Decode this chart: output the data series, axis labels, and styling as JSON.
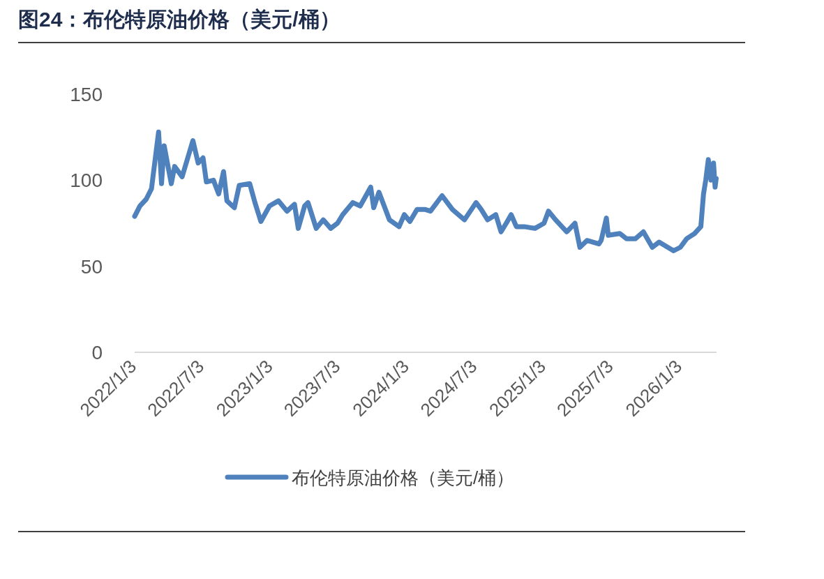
{
  "chart_data": {
    "type": "line",
    "title": "图24：布伦特原油价格（美元/桶）",
    "legend": "bottom",
    "grid": false,
    "line_style": "solid",
    "xlim": [
      "2022-01-03",
      "2026-04-10"
    ],
    "xticks": [
      {
        "value": "2022-01-03",
        "label": "2022/1/3"
      },
      {
        "value": "2022-07-03",
        "label": "2022/7/3"
      },
      {
        "value": "2023-01-03",
        "label": "2023/1/3"
      },
      {
        "value": "2023-07-03",
        "label": "2023/7/3"
      },
      {
        "value": "2024-01-03",
        "label": "2024/1/3"
      },
      {
        "value": "2024-07-03",
        "label": "2024/7/3"
      },
      {
        "value": "2025-01-03",
        "label": "2025/1/3"
      },
      {
        "value": "2025-07-03",
        "label": "2025/7/3"
      },
      {
        "value": "2026-01-03",
        "label": "2026/1/3"
      }
    ],
    "ylim": [
      0,
      150
    ],
    "yticks": [
      0,
      50,
      100,
      150
    ],
    "x": [
      "2022-01-03",
      "2022-01-17",
      "2022-02-03",
      "2022-02-17",
      "2022-03-08",
      "2022-03-16",
      "2022-03-23",
      "2022-04-11",
      "2022-04-20",
      "2022-05-10",
      "2022-06-08",
      "2022-06-22",
      "2022-07-05",
      "2022-07-14",
      "2022-08-02",
      "2022-08-16",
      "2022-08-29",
      "2022-09-07",
      "2022-09-27",
      "2022-10-10",
      "2022-11-07",
      "2022-11-21",
      "2022-12-07",
      "2022-12-30",
      "2023-01-23",
      "2023-02-15",
      "2023-03-07",
      "2023-03-17",
      "2023-04-03",
      "2023-04-12",
      "2023-05-04",
      "2023-05-23",
      "2023-06-12",
      "2023-06-30",
      "2023-07-14",
      "2023-08-10",
      "2023-08-30",
      "2023-09-27",
      "2023-10-05",
      "2023-10-19",
      "2023-11-16",
      "2023-12-12",
      "2023-12-26",
      "2024-01-10",
      "2024-01-29",
      "2024-02-20",
      "2024-03-05",
      "2024-04-05",
      "2024-04-19",
      "2024-05-03",
      "2024-06-04",
      "2024-07-05",
      "2024-07-19",
      "2024-08-05",
      "2024-08-27",
      "2024-09-10",
      "2024-09-24",
      "2024-10-07",
      "2024-10-21",
      "2024-11-11",
      "2024-12-10",
      "2025-01-03",
      "2025-01-15",
      "2025-02-03",
      "2025-03-05",
      "2025-03-27",
      "2025-04-09",
      "2025-04-28",
      "2025-05-30",
      "2025-06-05",
      "2025-06-19",
      "2025-06-24",
      "2025-07-25",
      "2025-08-12",
      "2025-09-05",
      "2025-09-26",
      "2025-10-20",
      "2025-11-07",
      "2025-12-16",
      "2026-01-03",
      "2026-01-20",
      "2026-02-10",
      "2026-02-27",
      "2026-03-06",
      "2026-03-12",
      "2026-03-19",
      "2026-03-26",
      "2026-04-02",
      "2026-04-06",
      "2026-04-09"
    ],
    "series": [
      {
        "name": "布伦特原油价格（美元/桶）",
        "color": "#4f81bd",
        "values": [
          79,
          85,
          89,
          95,
          128,
          98,
          120,
          98,
          108,
          102,
          123,
          110,
          113,
          99,
          100,
          92,
          105,
          88,
          84,
          97,
          98,
          87,
          76,
          85,
          88,
          82,
          86,
          72,
          85,
          87,
          72,
          77,
          72,
          75,
          80,
          87,
          85,
          96,
          84,
          93,
          77,
          73,
          80,
          76,
          83,
          83,
          82,
          91,
          87,
          83,
          77,
          87,
          83,
          77,
          80,
          70,
          75,
          80,
          73,
          73,
          72,
          75,
          82,
          77,
          70,
          75,
          61,
          65,
          63,
          65,
          78,
          68,
          69,
          66,
          66,
          70,
          61,
          64,
          59,
          61,
          66,
          69,
          73,
          92,
          100,
          112,
          100,
          110,
          96,
          101
        ]
      }
    ]
  }
}
